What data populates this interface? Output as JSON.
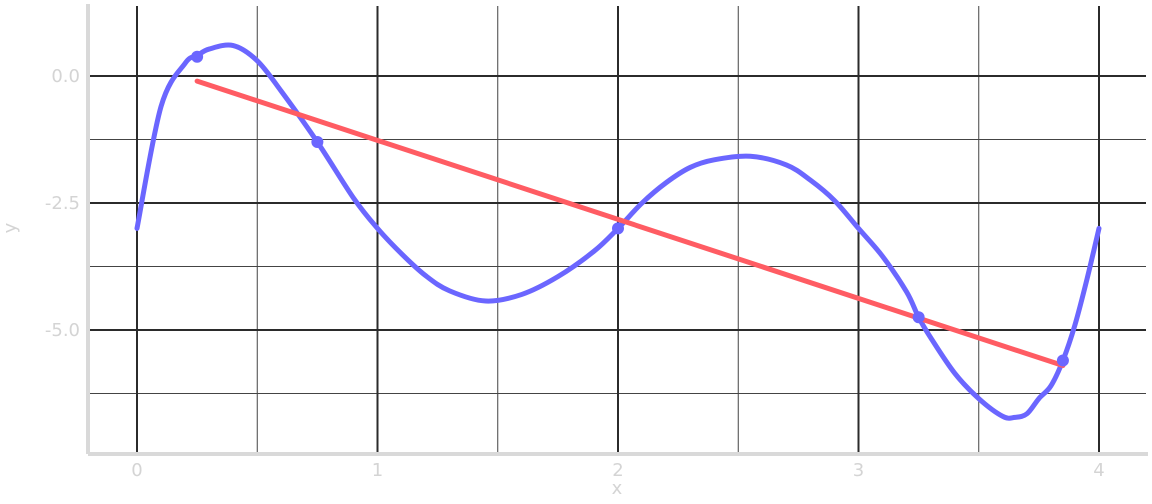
{
  "chart_data": {
    "type": "line",
    "title": "",
    "xlabel": "x",
    "ylabel": "y",
    "xlim": [
      -0.18,
      4.18
    ],
    "ylim": [
      -7.4,
      1.25
    ],
    "x_ticks": [
      0,
      1,
      2,
      3,
      4
    ],
    "x_tick_labels": [
      "0",
      "1",
      "2",
      "3",
      "4"
    ],
    "x_minor_ticks": [
      0.5,
      1.5,
      2.5,
      3.5
    ],
    "y_ticks": [
      0.0,
      -2.5,
      -5.0
    ],
    "y_tick_labels": [
      "0.0",
      "-2.5",
      "-5.0"
    ],
    "y_minor_ticks": [
      -1.25,
      -3.75,
      -6.25
    ],
    "grid": true,
    "legend": "none",
    "series": [
      {
        "kind": "curve",
        "color": "#6b66ff",
        "x": [
          0.0,
          0.1,
          0.2,
          0.25,
          0.3,
          0.4,
          0.5,
          0.6,
          0.75,
          0.9,
          1.0,
          1.1,
          1.2,
          1.3,
          1.45,
          1.6,
          1.75,
          1.9,
          2.0,
          2.1,
          2.2,
          2.3,
          2.4,
          2.55,
          2.7,
          2.8,
          2.9,
          3.0,
          3.1,
          3.2,
          3.25,
          3.3,
          3.4,
          3.5,
          3.6,
          3.65,
          3.7,
          3.75,
          3.8,
          3.85,
          3.9,
          3.95,
          4.0
        ],
        "y": [
          -3.0,
          -0.6,
          0.25,
          0.4,
          0.53,
          0.6,
          0.3,
          -0.3,
          -1.3,
          -2.4,
          -3.0,
          -3.5,
          -3.93,
          -4.23,
          -4.43,
          -4.3,
          -3.95,
          -3.45,
          -3.0,
          -2.5,
          -2.1,
          -1.8,
          -1.65,
          -1.58,
          -1.75,
          -2.05,
          -2.45,
          -3.0,
          -3.55,
          -4.25,
          -4.75,
          -5.15,
          -5.85,
          -6.35,
          -6.7,
          -6.72,
          -6.65,
          -6.35,
          -6.1,
          -5.6,
          -4.9,
          -4.0,
          -3.0
        ]
      },
      {
        "kind": "points",
        "color": "#6b66ff",
        "x": [
          0.25,
          0.75,
          2.0,
          3.25,
          3.85
        ],
        "y": [
          0.38,
          -1.3,
          -3.0,
          -4.75,
          -5.6
        ]
      },
      {
        "kind": "line",
        "color": "#ff5c63",
        "x": [
          0.25,
          3.85
        ],
        "y": [
          -0.1,
          -5.7
        ]
      }
    ]
  }
}
